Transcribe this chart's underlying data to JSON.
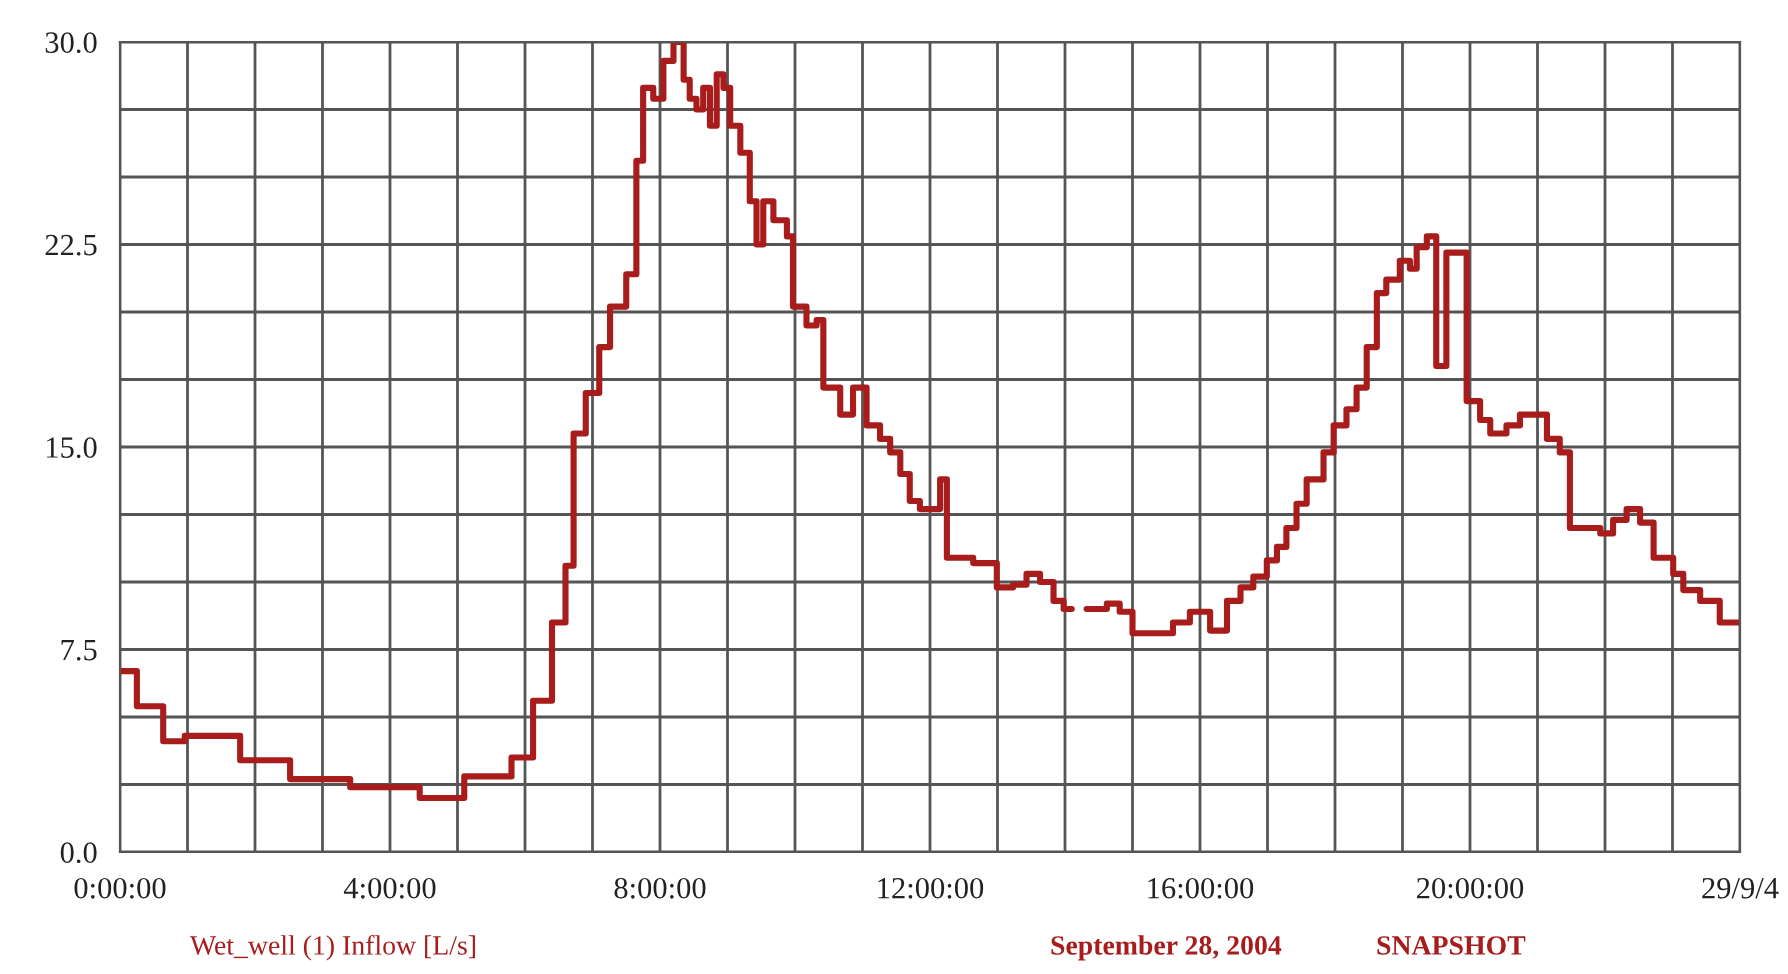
{
  "chart_data": {
    "type": "step",
    "xlim": [
      0,
      24
    ],
    "ylim": [
      0,
      30
    ],
    "xticks": [
      {
        "value": 0,
        "label": "0:00:00"
      },
      {
        "value": 1,
        "label": null
      },
      {
        "value": 2,
        "label": null
      },
      {
        "value": 3,
        "label": null
      },
      {
        "value": 4,
        "label": "4:00:00"
      },
      {
        "value": 5,
        "label": null
      },
      {
        "value": 6,
        "label": null
      },
      {
        "value": 7,
        "label": null
      },
      {
        "value": 8,
        "label": "8:00:00"
      },
      {
        "value": 9,
        "label": null
      },
      {
        "value": 10,
        "label": null
      },
      {
        "value": 11,
        "label": null
      },
      {
        "value": 12,
        "label": "12:00:00"
      },
      {
        "value": 13,
        "label": null
      },
      {
        "value": 14,
        "label": null
      },
      {
        "value": 15,
        "label": null
      },
      {
        "value": 16,
        "label": "16:00:00"
      },
      {
        "value": 17,
        "label": null
      },
      {
        "value": 18,
        "label": null
      },
      {
        "value": 19,
        "label": null
      },
      {
        "value": 20,
        "label": "20:00:00"
      },
      {
        "value": 21,
        "label": null
      },
      {
        "value": 22,
        "label": null
      },
      {
        "value": 23,
        "label": null
      },
      {
        "value": 24,
        "label": "29/9/4"
      }
    ],
    "yticks": [
      {
        "value": 0,
        "label": "0.0"
      },
      {
        "value": 2.5,
        "label": null
      },
      {
        "value": 5,
        "label": null
      },
      {
        "value": 7.5,
        "label": "7.5"
      },
      {
        "value": 10,
        "label": null
      },
      {
        "value": 12.5,
        "label": null
      },
      {
        "value": 15,
        "label": "15.0"
      },
      {
        "value": 17.5,
        "label": null
      },
      {
        "value": 20,
        "label": null
      },
      {
        "value": 22.5,
        "label": "22.5"
      },
      {
        "value": 25,
        "label": null
      },
      {
        "value": 27.5,
        "label": null
      },
      {
        "value": 30,
        "label": "30.0"
      }
    ],
    "grid": true,
    "annotations": [
      "Wet_well (1) Inflow [L/s]",
      "September 28, 2004",
      "SNAPSHOT"
    ],
    "x": [
      0,
      0.25,
      0.64,
      0.96,
      1.78,
      2.52,
      3.41,
      4.44,
      5.1,
      5.8,
      6.12,
      6.4,
      6.6,
      6.72,
      6.9,
      7.1,
      7.26,
      7.5,
      7.65,
      7.75,
      7.9,
      8.05,
      8.2,
      8.35,
      8.44,
      8.54,
      8.64,
      8.74,
      8.84,
      8.94,
      9.04,
      9.19,
      9.33,
      9.43,
      9.53,
      9.68,
      9.88,
      9.97,
      10.17,
      10.32,
      10.42,
      10.67,
      10.86,
      11.06,
      11.26,
      11.41,
      11.56,
      11.7,
      11.85,
      12.15,
      12.25,
      12.64,
      12.99,
      13.23,
      13.43,
      13.63,
      13.83,
      13.98,
      14.1,
      14.32,
      14.62,
      14.81,
      15.0,
      15.6,
      15.85,
      16.15,
      16.4,
      16.6,
      16.79,
      16.99,
      17.14,
      17.28,
      17.43,
      17.58,
      17.83,
      17.98,
      18.17,
      18.32,
      18.47,
      18.62,
      18.76,
      18.96,
      19.11,
      19.21,
      19.36,
      19.5,
      19.65,
      19.95,
      20.15,
      20.3,
      20.54,
      20.74,
      21.14,
      21.33,
      21.48,
      21.93,
      22.12,
      22.32,
      22.52,
      22.72,
      23.01,
      23.16,
      23.41,
      23.7,
      24
    ],
    "series": [
      {
        "color": "#a81c1c",
        "values": [
          6.7,
          5.4,
          4.1,
          4.3,
          3.4,
          2.7,
          2.4,
          2.0,
          2.8,
          3.5,
          5.6,
          8.5,
          10.6,
          15.5,
          17.0,
          18.7,
          20.2,
          21.4,
          25.6,
          28.3,
          27.9,
          29.3,
          30.0,
          28.6,
          27.9,
          27.5,
          28.3,
          26.9,
          28.8,
          28.3,
          26.9,
          25.9,
          24.1,
          22.5,
          24.1,
          23.4,
          22.8,
          20.2,
          19.5,
          19.7,
          17.2,
          16.2,
          17.2,
          15.8,
          15.3,
          14.8,
          14.0,
          13.0,
          12.7,
          13.8,
          10.9,
          10.7,
          9.8,
          9.9,
          10.3,
          10.0,
          9.3,
          9.0,
          null,
          9.0,
          9.2,
          8.9,
          8.1,
          8.5,
          8.9,
          8.2,
          9.3,
          9.8,
          10.2,
          10.8,
          11.3,
          12.0,
          12.9,
          13.8,
          14.8,
          15.8,
          16.4,
          17.2,
          18.7,
          20.7,
          21.2,
          21.9,
          21.6,
          22.4,
          22.8,
          18.0,
          22.2,
          16.7,
          16.0,
          15.5,
          15.8,
          16.2,
          15.3,
          14.8,
          12.0,
          11.8,
          12.3,
          12.7,
          12.2,
          10.9,
          10.3,
          9.7,
          9.3,
          8.5,
          8.5
        ]
      }
    ]
  }
}
